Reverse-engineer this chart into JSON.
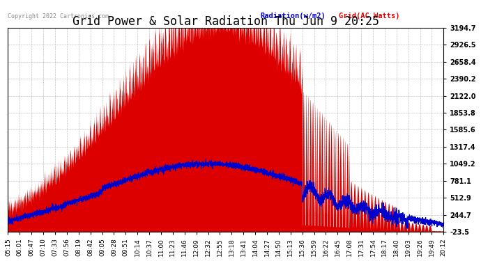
{
  "title": "Grid Power & Solar Radiation Thu Jun 9 20:25",
  "copyright": "Copyright 2022 Cartronics.com",
  "legend_radiation": "Radiation(w/m2)",
  "legend_grid": "Grid(AC Watts)",
  "right_yticks": [
    3194.7,
    2926.5,
    2658.4,
    2390.2,
    2122.0,
    1853.8,
    1585.6,
    1317.4,
    1049.2,
    781.1,
    512.9,
    244.7,
    -23.5
  ],
  "ymin": -23.5,
  "ymax": 3194.7,
  "background_color": "#ffffff",
  "plot_bg_color": "#ffffff",
  "grid_color": "#aaaaaa",
  "fill_color": "#dd0000",
  "radiation_line_color": "#0000cc",
  "grid_line_color": "#cc0000",
  "title_fontsize": 12,
  "tick_fontsize": 7.0,
  "xtick_labels": [
    "05:15",
    "06:01",
    "06:47",
    "07:10",
    "07:33",
    "07:56",
    "08:19",
    "08:42",
    "09:05",
    "09:28",
    "09:51",
    "10:14",
    "10:37",
    "11:00",
    "11:23",
    "11:46",
    "12:09",
    "12:32",
    "12:55",
    "13:18",
    "13:41",
    "14:04",
    "14:27",
    "14:50",
    "15:13",
    "15:36",
    "15:59",
    "16:22",
    "16:45",
    "17:08",
    "17:31",
    "17:54",
    "18:17",
    "18:40",
    "19:03",
    "19:26",
    "19:49",
    "20:12"
  ]
}
